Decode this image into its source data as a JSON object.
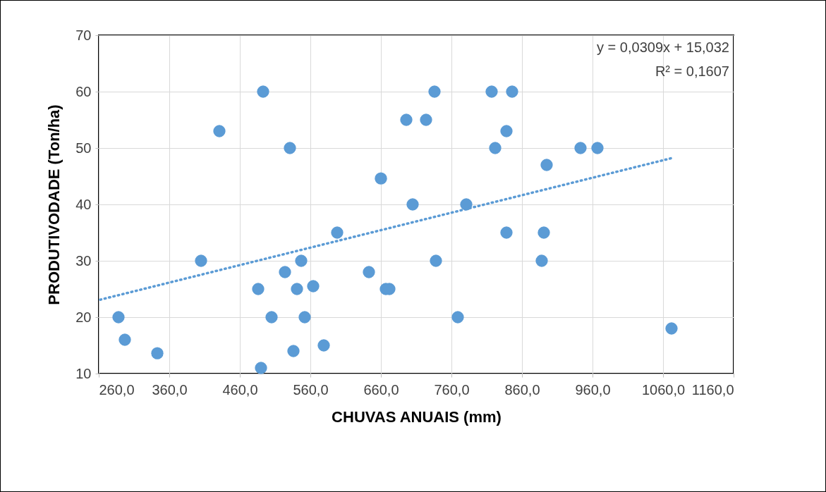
{
  "chart_data": {
    "type": "scatter",
    "xlabel": "CHUVAS ANUAIS  (mm)",
    "ylabel": "PRODUTIVODADE  (Ton/ha)",
    "xlim": [
      260,
      1160
    ],
    "ylim": [
      10,
      70
    ],
    "xticks": [
      {
        "value": 260,
        "label": "260,0"
      },
      {
        "value": 360,
        "label": "360,0"
      },
      {
        "value": 460,
        "label": "460,0"
      },
      {
        "value": 560,
        "label": "560,0"
      },
      {
        "value": 660,
        "label": "660,0"
      },
      {
        "value": 760,
        "label": "760,0"
      },
      {
        "value": 860,
        "label": "860,0"
      },
      {
        "value": 960,
        "label": "960,0"
      },
      {
        "value": 1060,
        "label": "1060,0"
      },
      {
        "value": 1160,
        "label": "1160,0"
      }
    ],
    "yticks": [
      10,
      20,
      30,
      40,
      50,
      60,
      70
    ],
    "grid": true,
    "marker": "circle",
    "annotations": [
      "y = 0,0309x + 15,032",
      "R² = 0,1607"
    ],
    "series": [
      {
        "color": "#5b9bd5",
        "x": [
          288,
          297,
          343,
          405,
          431,
          493,
          486,
          490,
          505,
          531,
          524,
          536,
          541,
          547,
          552,
          564,
          579,
          598,
          643,
          660,
          667,
          672,
          696,
          705,
          724,
          736,
          738,
          781,
          769,
          817,
          846,
          838,
          822,
          838,
          891,
          888,
          895,
          943,
          967,
          1072
        ],
        "values": [
          20,
          16,
          13.6,
          30,
          53,
          60,
          25,
          11,
          20,
          50,
          28,
          14,
          25,
          30,
          20,
          25.5,
          15,
          35,
          28,
          44.6,
          25,
          25,
          55,
          40,
          55,
          60,
          30,
          40,
          20,
          60,
          60,
          53,
          50,
          35,
          35,
          30,
          47,
          50,
          50,
          18
        ]
      },
      {
        "type": "line",
        "color": "#5b9bd5",
        "line_style": "dotted",
        "marker": "none",
        "x": [
          262,
          1072
        ],
        "values": [
          23.1,
          48.2
        ]
      }
    ]
  }
}
